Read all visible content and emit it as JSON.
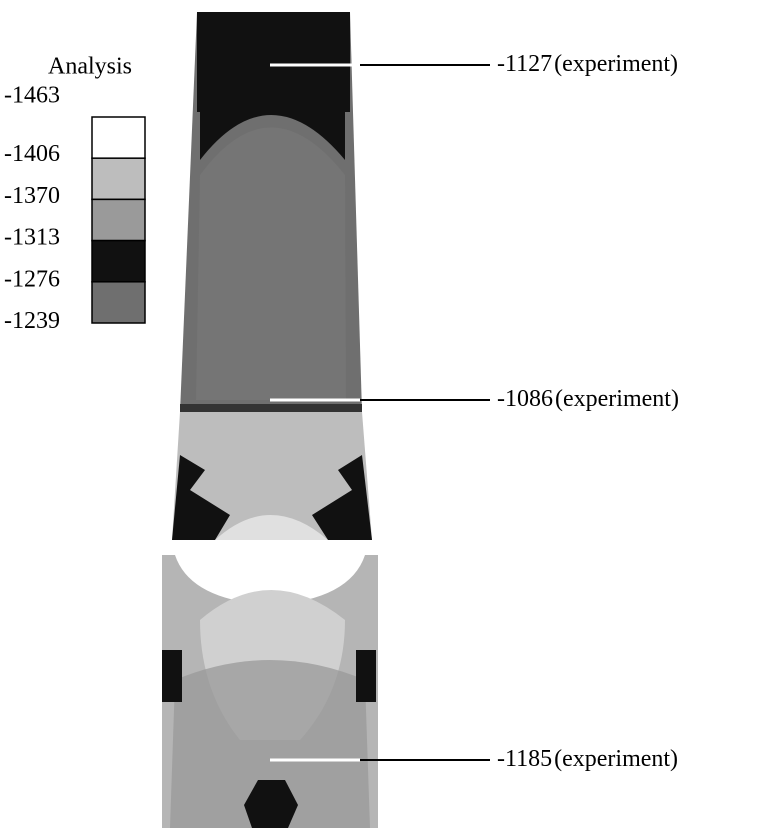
{
  "legend": {
    "title": "Analysis",
    "labels": [
      -1463,
      -1406,
      -1370,
      -1313,
      -1276,
      -1239
    ],
    "colors": [
      "#ffffff",
      "#bdbdbd",
      "#9a9a9a",
      "#111111",
      "#6f6f6f"
    ]
  },
  "annotations": [
    {
      "value": -1127,
      "label": "(experiment)"
    },
    {
      "value": -1086,
      "label": "(experiment)"
    },
    {
      "value": -1185,
      "label": "(experiment)"
    }
  ]
}
